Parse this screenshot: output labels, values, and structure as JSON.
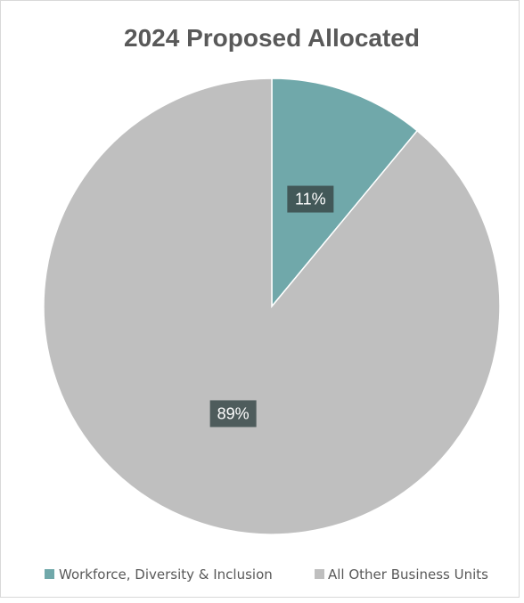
{
  "chart_data": {
    "type": "pie",
    "title": "2024 Proposed Allocated",
    "slices": [
      {
        "name": "Workforce, Diversity & Inclusion",
        "value": 11,
        "label": "11%",
        "color": "#70a8aa"
      },
      {
        "name": "All Other Business Units",
        "value": 89,
        "label": "89%",
        "color": "#bfbfbf"
      }
    ],
    "start_angle_deg": 0,
    "direction": "clockwise",
    "legend_position": "bottom",
    "data_label_bg": "#3a4a4a"
  }
}
